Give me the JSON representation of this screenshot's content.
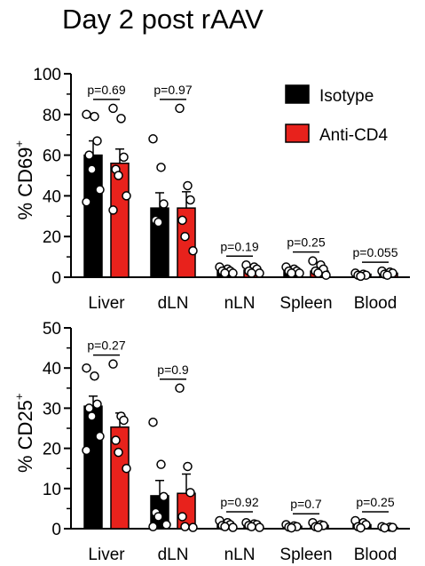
{
  "title": "Day 2 post rAAV",
  "colors": {
    "isotype": "#000000",
    "anti_cd4": "#e8221c",
    "dot_fill": "#ffffff"
  },
  "legend": [
    {
      "name": "Isotype",
      "color": "#000000"
    },
    {
      "name": "Anti-CD4",
      "color": "#e8221c"
    }
  ],
  "chart_data": [
    {
      "type": "bar",
      "ylabel_main": "% CD69",
      "ylabel_sup": "+",
      "ylim": [
        0,
        100
      ],
      "yticks": [
        0,
        20,
        40,
        60,
        80,
        100
      ],
      "categories": [
        "Liver",
        "dLN",
        "nLN",
        "Spleen",
        "Blood"
      ],
      "legend_position": "top-right",
      "series": [
        {
          "name": "Isotype",
          "values": [
            60,
            34,
            3,
            3,
            1.5
          ],
          "errors": [
            7,
            7.5,
            0.8,
            0.8,
            0.5
          ],
          "points": [
            [
              80,
              79,
              67,
              60,
              53,
              43,
              37
            ],
            [
              68,
              54,
              36,
              28,
              27
            ],
            [
              5,
              4,
              3,
              3,
              2,
              2
            ],
            [
              5,
              4,
              3,
              3,
              2,
              2
            ],
            [
              2,
              1.5,
              1,
              1,
              0.5
            ]
          ]
        },
        {
          "name": "Anti-CD4",
          "values": [
            56,
            34,
            3.5,
            3,
            2
          ],
          "errors": [
            7,
            8,
            1,
            1,
            0.5
          ],
          "points": [
            [
              83,
              78,
              59,
              53,
              50,
              40,
              33
            ],
            [
              83,
              45,
              38,
              28,
              20,
              13
            ],
            [
              6,
              5,
              4,
              3,
              2,
              2
            ],
            [
              8,
              6,
              4,
              3,
              2,
              1
            ],
            [
              3,
              2.5,
              2,
              1.5,
              1
            ]
          ]
        }
      ],
      "p_values": [
        "p=0.69",
        "p=0.97",
        "p=0.19",
        "p=0.25",
        "p=0.055"
      ]
    },
    {
      "type": "bar",
      "ylabel_main": "% CD25",
      "ylabel_sup": "+",
      "ylim": [
        0,
        50
      ],
      "yticks": [
        0,
        10,
        20,
        30,
        40,
        50
      ],
      "categories": [
        "Liver",
        "dLN",
        "nLN",
        "Spleen",
        "Blood"
      ],
      "series": [
        {
          "name": "Isotype",
          "values": [
            30.5,
            8.2,
            1.1,
            0.6,
            1.0
          ],
          "errors": [
            2.5,
            3.8,
            0.4,
            0.2,
            0.4
          ],
          "points": [
            [
              40,
              38,
              31,
              30,
              28,
              23,
              19.5
            ],
            [
              26.5,
              16,
              8,
              4,
              3,
              1,
              0.5
            ],
            [
              2,
              1.5,
              1,
              0.8,
              0.5,
              0.3
            ],
            [
              1,
              0.7,
              0.5,
              0.4,
              0.2
            ],
            [
              2,
              1.5,
              1,
              0.5,
              0.2
            ]
          ]
        },
        {
          "name": "Anti-CD4",
          "values": [
            25.3,
            8.8,
            0.9,
            0.8,
            0.3
          ],
          "errors": [
            3.5,
            4.8,
            0.3,
            0.3,
            0.1
          ],
          "points": [
            [
              41,
              28,
              27,
              22,
              19,
              15
            ],
            [
              35,
              15.5,
              9,
              3,
              0.5,
              0.3
            ],
            [
              1.5,
              1.2,
              1,
              0.8,
              0.5,
              0.3
            ],
            [
              1.5,
              1,
              0.8,
              0.5,
              0.3
            ],
            [
              0.5,
              0.4,
              0.3,
              0.2
            ]
          ]
        }
      ],
      "p_values": [
        "p=0.27",
        "p=0.9",
        "p=0.92",
        "p=0.7",
        "p=0.25"
      ]
    }
  ]
}
